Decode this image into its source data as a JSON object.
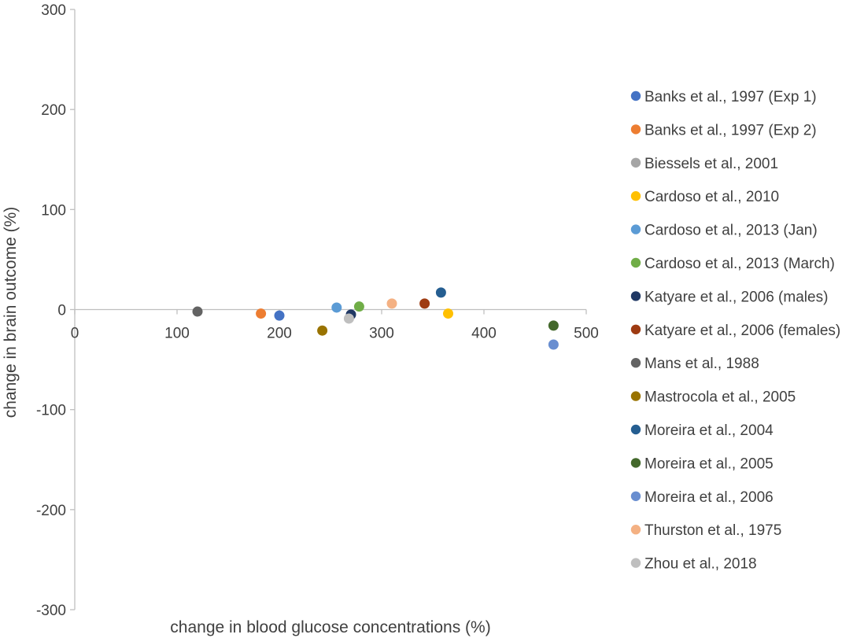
{
  "chart_data": {
    "type": "scatter",
    "title": "",
    "xlabel": "change in blood glucose concentrations (%)",
    "ylabel": "change in brain outcome (%)",
    "xlim": [
      0,
      500
    ],
    "ylim": [
      -300,
      300
    ],
    "x_ticks": [
      0,
      100,
      200,
      300,
      400,
      500
    ],
    "y_ticks": [
      -300,
      -200,
      -100,
      0,
      100,
      200,
      300
    ],
    "x_tick_labels": [
      "0",
      "100",
      "200",
      "300",
      "400",
      "500"
    ],
    "y_tick_labels": [
      "-300",
      "-200",
      "-100",
      "0",
      "100",
      "200",
      "300"
    ],
    "grid": false,
    "legend_position": "right",
    "series": [
      {
        "name": "Banks et al., 1997 (Exp 1)",
        "color": "#4472C4",
        "points": [
          [
            200,
            -6
          ]
        ]
      },
      {
        "name": "Banks et al., 1997 (Exp 2)",
        "color": "#ED7D31",
        "points": [
          [
            182,
            -4
          ]
        ]
      },
      {
        "name": "Biessels et al., 2001",
        "color": "#A5A5A5",
        "points": []
      },
      {
        "name": "Cardoso et al., 2010",
        "color": "#FFC000",
        "points": [
          [
            365,
            -4
          ]
        ]
      },
      {
        "name": "Cardoso et al., 2013 (Jan)",
        "color": "#5B9BD5",
        "points": [
          [
            256,
            2
          ]
        ]
      },
      {
        "name": "Cardoso et al., 2013 (March)",
        "color": "#70AD47",
        "points": [
          [
            278,
            3
          ]
        ]
      },
      {
        "name": "Katyare et al., 2006 (males)",
        "color": "#203864",
        "points": [
          [
            270,
            -5
          ]
        ]
      },
      {
        "name": "Katyare et al., 2006 (females)",
        "color": "#9E3B12",
        "points": [
          [
            342,
            6
          ]
        ]
      },
      {
        "name": "Mans et al., 1988",
        "color": "#636363",
        "points": [
          [
            120,
            -2
          ]
        ]
      },
      {
        "name": "Mastrocola et al., 2005",
        "color": "#997300",
        "points": [
          [
            242,
            -21
          ]
        ]
      },
      {
        "name": "Moreira et al., 2004",
        "color": "#255E91",
        "points": [
          [
            358,
            17
          ]
        ]
      },
      {
        "name": "Moreira et al., 2005",
        "color": "#43682B",
        "points": [
          [
            468,
            -16
          ]
        ]
      },
      {
        "name": "Moreira et al., 2006",
        "color": "#698ED0",
        "points": [
          [
            468,
            -35
          ]
        ]
      },
      {
        "name": "Thurston et al., 1975",
        "color": "#F4B183",
        "points": [
          [
            310,
            6
          ]
        ]
      },
      {
        "name": "Zhou et al., 2018",
        "color": "#BFBFBF",
        "points": [
          [
            268,
            -9
          ]
        ]
      }
    ]
  }
}
